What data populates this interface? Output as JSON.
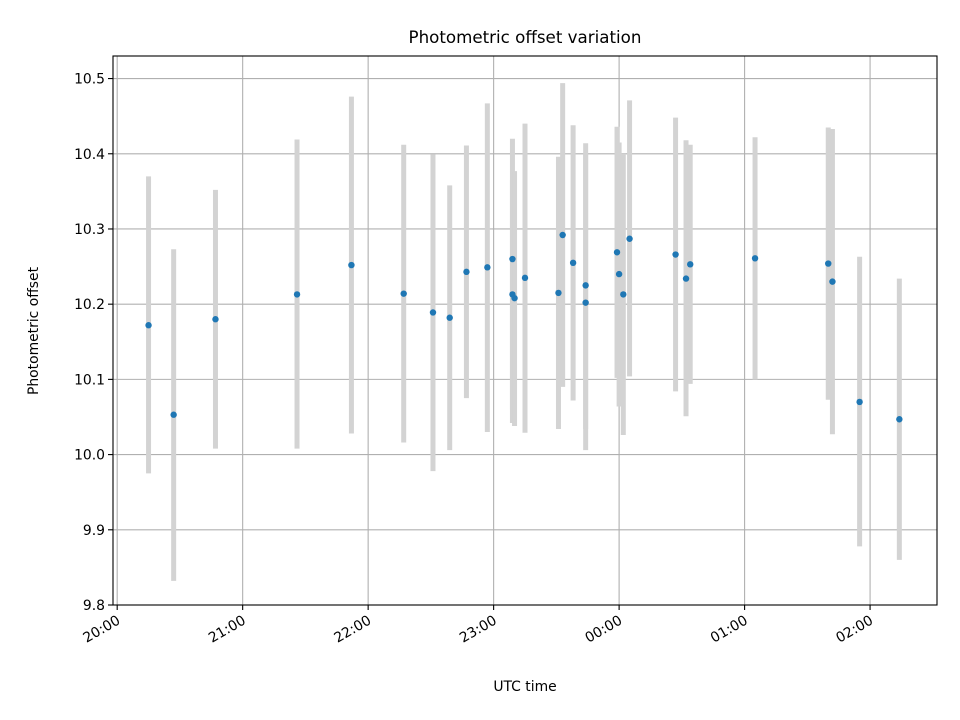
{
  "chart_data": {
    "type": "scatter",
    "title": "Photometric offset variation",
    "xlabel": "UTC time",
    "ylabel": "Photometric offset",
    "grid": true,
    "x_axis": {
      "scale": "time",
      "range": [
        "19:58",
        "02:32"
      ],
      "ticks": [
        {
          "value": "20:00",
          "label": "20:00"
        },
        {
          "value": "21:00",
          "label": "21:00"
        },
        {
          "value": "22:00",
          "label": "22:00"
        },
        {
          "value": "23:00",
          "label": "23:00"
        },
        {
          "value": "00:00",
          "label": "00:00"
        },
        {
          "value": "01:00",
          "label": "01:00"
        },
        {
          "value": "02:00",
          "label": "02:00"
        }
      ]
    },
    "y_axis": {
      "range": [
        9.8,
        10.53
      ],
      "ticks": [
        9.8,
        9.9,
        10.0,
        10.1,
        10.2,
        10.3,
        10.4,
        10.5
      ],
      "tick_labels": [
        "9.8",
        "9.9",
        "10.0",
        "10.1",
        "10.2",
        "10.3",
        "10.4",
        "10.5"
      ]
    },
    "colors": {
      "marker": "#1f77b4",
      "errorbar": "#d3d3d3",
      "grid": "#b0b0b0"
    },
    "series": [
      {
        "points": [
          {
            "x": "20:15",
            "y": 10.172,
            "lo": 9.975,
            "hi": 10.37
          },
          {
            "x": "20:27",
            "y": 10.053,
            "lo": 9.832,
            "hi": 10.273
          },
          {
            "x": "20:47",
            "y": 10.18,
            "lo": 10.008,
            "hi": 10.352
          },
          {
            "x": "21:26",
            "y": 10.213,
            "lo": 10.008,
            "hi": 10.419
          },
          {
            "x": "21:52",
            "y": 10.252,
            "lo": 10.028,
            "hi": 10.476
          },
          {
            "x": "22:17",
            "y": 10.214,
            "lo": 10.016,
            "hi": 10.412
          },
          {
            "x": "22:31",
            "y": 10.189,
            "lo": 9.978,
            "hi": 10.399
          },
          {
            "x": "22:39",
            "y": 10.182,
            "lo": 10.006,
            "hi": 10.358
          },
          {
            "x": "22:47",
            "y": 10.243,
            "lo": 10.075,
            "hi": 10.411
          },
          {
            "x": "22:57",
            "y": 10.249,
            "lo": 10.03,
            "hi": 10.467
          },
          {
            "x": "23:09",
            "y": 10.26,
            "lo": 10.042,
            "hi": 10.42
          },
          {
            "x": "23:09",
            "y": 10.213,
            "lo": 10.06,
            "hi": 10.365
          },
          {
            "x": "23:10",
            "y": 10.208,
            "lo": 10.038,
            "hi": 10.377
          },
          {
            "x": "23:15",
            "y": 10.235,
            "lo": 10.029,
            "hi": 10.44
          },
          {
            "x": "23:31",
            "y": 10.215,
            "lo": 10.034,
            "hi": 10.396
          },
          {
            "x": "23:33",
            "y": 10.292,
            "lo": 10.09,
            "hi": 10.494
          },
          {
            "x": "23:38",
            "y": 10.255,
            "lo": 10.072,
            "hi": 10.438
          },
          {
            "x": "23:44",
            "y": 10.225,
            "lo": 10.034,
            "hi": 10.414
          },
          {
            "x": "23:44",
            "y": 10.202,
            "lo": 10.006,
            "hi": 10.399
          },
          {
            "x": "23:59",
            "y": 10.269,
            "lo": 10.102,
            "hi": 10.436
          },
          {
            "x": "00:00",
            "y": 10.24,
            "lo": 10.064,
            "hi": 10.415
          },
          {
            "x": "00:02",
            "y": 10.213,
            "lo": 10.026,
            "hi": 10.4
          },
          {
            "x": "00:05",
            "y": 10.287,
            "lo": 10.104,
            "hi": 10.471
          },
          {
            "x": "00:27",
            "y": 10.266,
            "lo": 10.084,
            "hi": 10.448
          },
          {
            "x": "00:32",
            "y": 10.234,
            "lo": 10.051,
            "hi": 10.418
          },
          {
            "x": "00:34",
            "y": 10.253,
            "lo": 10.094,
            "hi": 10.412
          },
          {
            "x": "01:05",
            "y": 10.261,
            "lo": 10.1,
            "hi": 10.422
          },
          {
            "x": "01:40",
            "y": 10.254,
            "lo": 10.073,
            "hi": 10.435
          },
          {
            "x": "01:42",
            "y": 10.23,
            "lo": 10.027,
            "hi": 10.433
          },
          {
            "x": "01:55",
            "y": 10.07,
            "lo": 9.878,
            "hi": 10.263
          },
          {
            "x": "02:14",
            "y": 10.047,
            "lo": 9.86,
            "hi": 10.234
          }
        ]
      }
    ]
  }
}
